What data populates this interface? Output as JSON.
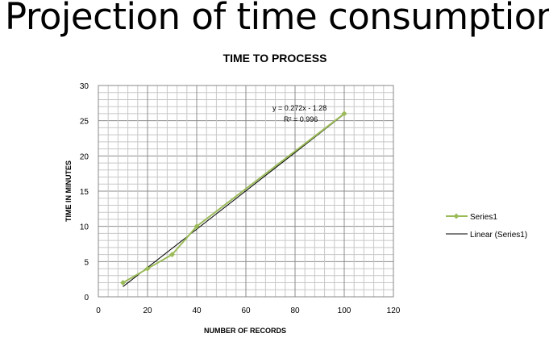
{
  "slide": {
    "title": "Projection of time consumption"
  },
  "chart_data": {
    "type": "scatter",
    "title": "TIME TO PROCESS",
    "xlabel": "NUMBER OF RECORDS",
    "ylabel": "TIME IN MINUTES",
    "xlim": [
      0,
      120
    ],
    "ylim": [
      0,
      30
    ],
    "x_ticks": [
      0,
      20,
      40,
      60,
      80,
      100,
      120
    ],
    "y_ticks": [
      0,
      5,
      10,
      15,
      20,
      25,
      30
    ],
    "grid": true,
    "legend_position": "right",
    "series": [
      {
        "name": "Series1",
        "color": "#9BBB59",
        "marker": "diamond",
        "x": [
          10,
          20,
          30,
          40,
          100
        ],
        "y": [
          2,
          4,
          6,
          10,
          26
        ]
      }
    ],
    "trendline": {
      "name": "Linear (Series1)",
      "color": "#000000",
      "slope": 0.272,
      "intercept": -1.28,
      "x_range": [
        10,
        100
      ],
      "equation": "y = 0.272x - 1.28",
      "r2": "R² = 0.996"
    }
  }
}
